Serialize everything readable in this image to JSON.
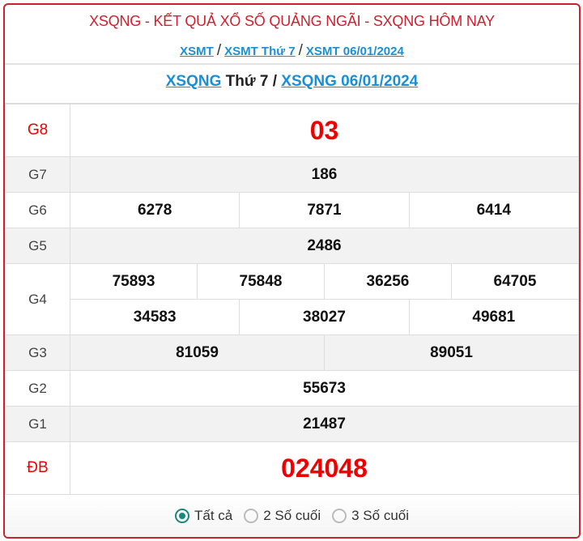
{
  "header": {
    "title": "XSQNG - KẾT QUẢ XỔ SỐ QUẢNG NGÃI - SXQNG HÔM NAY",
    "breadcrumb": [
      "XSMT",
      "XSMT Thứ 7",
      "XSMT 06/01/2024"
    ],
    "sep": "/"
  },
  "subtitle": {
    "link1": "XSQNG",
    "text": " Thứ 7 / ",
    "link2": "XSQNG 06/01/2024"
  },
  "results": {
    "G8": {
      "label": "G8",
      "values": [
        "03"
      ]
    },
    "G7": {
      "label": "G7",
      "values": [
        "186"
      ]
    },
    "G6": {
      "label": "G6",
      "values": [
        "6278",
        "7871",
        "6414"
      ]
    },
    "G5": {
      "label": "G5",
      "values": [
        "2486"
      ]
    },
    "G4": {
      "label": "G4",
      "values": [
        "75893",
        "75848",
        "36256",
        "64705",
        "34583",
        "38027",
        "49681"
      ]
    },
    "G3": {
      "label": "G3",
      "values": [
        "81059",
        "89051"
      ]
    },
    "G2": {
      "label": "G2",
      "values": [
        "55673"
      ]
    },
    "G1": {
      "label": "G1",
      "values": [
        "21487"
      ]
    },
    "DB": {
      "label": "ĐB",
      "values": [
        "024048"
      ]
    }
  },
  "filter": {
    "options": [
      "Tất cả",
      "2 Số cuối",
      "3 Số cuối"
    ],
    "selected": "Tất cả"
  },
  "colors": {
    "accent": "#d0202e",
    "link": "#1a8fd6",
    "prize": "#ee0000",
    "radio": "#178a7d"
  }
}
